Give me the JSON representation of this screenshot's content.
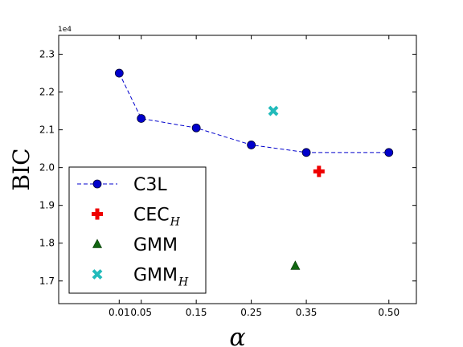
{
  "chart_data": {
    "type": "scatter",
    "xlabel": "α",
    "ylabel": "BIC",
    "y_multiplier_label": "1e4",
    "xlim": [
      -0.1,
      0.55
    ],
    "ylim": [
      1.64,
      2.35
    ],
    "xticks": [
      0.01,
      0.05,
      0.15,
      0.25,
      0.35,
      0.5
    ],
    "xtick_labels": [
      "0.01",
      "0.05",
      "0.15",
      "0.25",
      "0.35",
      "0.50"
    ],
    "yticks": [
      1.7,
      1.8,
      1.9,
      2.0,
      2.1,
      2.2,
      2.3
    ],
    "ytick_labels": [
      "1.7",
      "1.8",
      "1.9",
      "2.0",
      "2.1",
      "2.2",
      "2.3"
    ],
    "grid": false,
    "legend_position": "lower-left",
    "series": [
      {
        "name": "C3L",
        "name_sub": "",
        "marker": "circle",
        "line": "dashed",
        "color": "#0000cc",
        "x": [
          0.01,
          0.05,
          0.15,
          0.25,
          0.35,
          0.5
        ],
        "y": [
          2.25,
          2.13,
          2.105,
          2.06,
          2.04,
          2.04
        ]
      },
      {
        "name": "CEC",
        "name_sub": "H",
        "marker": "plus",
        "line": "none",
        "color": "#ee0000",
        "x": [
          0.373
        ],
        "y": [
          1.99
        ]
      },
      {
        "name": "GMM",
        "name_sub": "",
        "marker": "triangle",
        "line": "none",
        "color": "#116611",
        "x": [
          0.33
        ],
        "y": [
          1.74
        ]
      },
      {
        "name": "GMM",
        "name_sub": "H",
        "marker": "x",
        "line": "none",
        "color": "#22bbbb",
        "x": [
          0.29
        ],
        "y": [
          2.15
        ]
      }
    ]
  }
}
